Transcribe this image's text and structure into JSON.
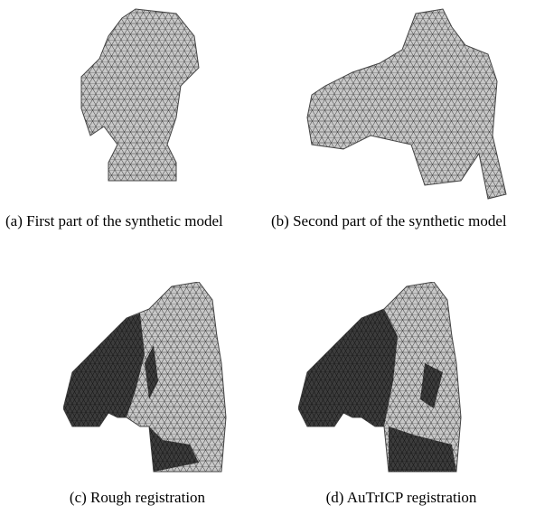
{
  "figure": {
    "panels": [
      {
        "caption": "(a) First part of the synthetic model"
      },
      {
        "caption": "(b) Second part of the synthetic model"
      },
      {
        "caption": "(c) Rough registration"
      },
      {
        "caption": "(d) AuTrICP registration"
      }
    ]
  }
}
